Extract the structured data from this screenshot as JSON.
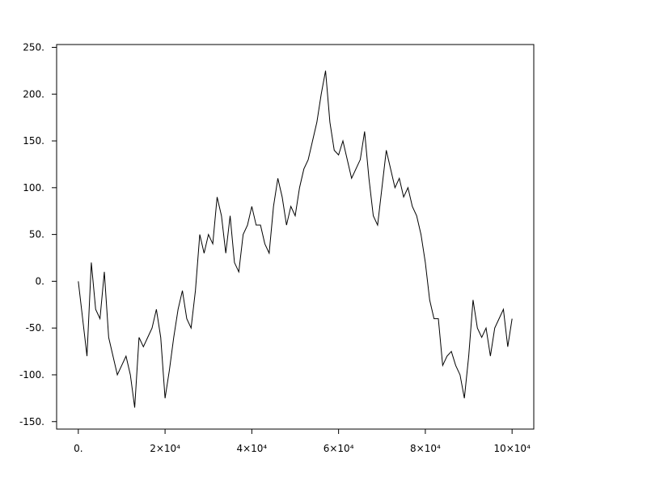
{
  "chart_data": {
    "type": "line",
    "x": [
      0,
      1000,
      2000,
      3000,
      4000,
      5000,
      6000,
      7000,
      8000,
      9000,
      10000,
      11000,
      12000,
      13000,
      14000,
      15000,
      16000,
      17000,
      18000,
      19000,
      20000,
      21000,
      22000,
      23000,
      24000,
      25000,
      26000,
      27000,
      28000,
      29000,
      30000,
      31000,
      32000,
      33000,
      34000,
      35000,
      36000,
      37000,
      38000,
      39000,
      40000,
      41000,
      42000,
      43000,
      44000,
      45000,
      46000,
      47000,
      48000,
      49000,
      50000,
      51000,
      52000,
      53000,
      54000,
      55000,
      56000,
      57000,
      58000,
      59000,
      60000,
      61000,
      62000,
      63000,
      64000,
      65000,
      66000,
      67000,
      68000,
      69000,
      70000,
      71000,
      72000,
      73000,
      74000,
      75000,
      76000,
      77000,
      78000,
      79000,
      80000,
      81000,
      82000,
      83000,
      84000,
      85000,
      86000,
      87000,
      88000,
      89000,
      90000,
      91000,
      92000,
      93000,
      94000,
      95000,
      96000,
      97000,
      98000,
      99000,
      100000
    ],
    "series": [
      {
        "color": "#000000",
        "values": [
          0,
          -40,
          -80,
          20,
          -30,
          -40,
          10,
          -60,
          -80,
          -100,
          -90,
          -80,
          -100,
          -135,
          -60,
          -70,
          -60,
          -50,
          -30,
          -60,
          -125,
          -95,
          -60,
          -30,
          -10,
          -40,
          -50,
          -10,
          50,
          30,
          50,
          40,
          90,
          70,
          30,
          70,
          20,
          10,
          50,
          60,
          80,
          60,
          60,
          40,
          30,
          80,
          110,
          90,
          60,
          80,
          70,
          100,
          120,
          130,
          150,
          170,
          200,
          225,
          170,
          140,
          135,
          150,
          130,
          110,
          120,
          130,
          160,
          110,
          70,
          60,
          100,
          140,
          120,
          100,
          110,
          90,
          100,
          80,
          70,
          50,
          20,
          -20,
          -40,
          -40,
          -90,
          -80,
          -75,
          -90,
          -100,
          -125,
          -80,
          -20,
          -50,
          -60,
          -50,
          -80,
          -50,
          -40,
          -30,
          -70,
          -40
        ]
      }
    ],
    "xlim": [
      -5000,
      105000
    ],
    "ylim": [
      -158,
      253
    ],
    "xticks": [
      {
        "value": 0,
        "label": "0."
      },
      {
        "value": 20000,
        "label": "2×10⁴"
      },
      {
        "value": 40000,
        "label": "4×10⁴"
      },
      {
        "value": 60000,
        "label": "6×10⁴"
      },
      {
        "value": 80000,
        "label": "8×10⁴"
      },
      {
        "value": 100000,
        "label": "10×10⁴"
      }
    ],
    "yticks": [
      {
        "value": -150,
        "label": "-150."
      },
      {
        "value": -100,
        "label": "-100."
      },
      {
        "value": -50,
        "label": "-50."
      },
      {
        "value": 0,
        "label": "0."
      },
      {
        "value": 50,
        "label": "50."
      },
      {
        "value": 100,
        "label": "100."
      },
      {
        "value": 150,
        "label": "150."
      },
      {
        "value": 200,
        "label": "200."
      },
      {
        "value": 250,
        "label": "250."
      }
    ]
  }
}
